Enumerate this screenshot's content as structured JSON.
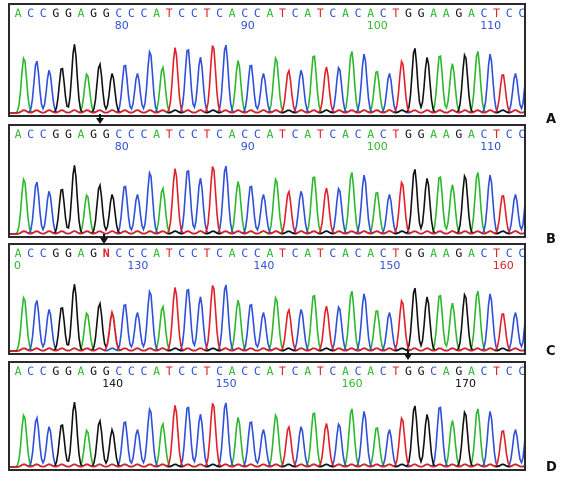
{
  "colors": {
    "A": "#2db82d",
    "C": "#2f50d8",
    "G": "#111111",
    "T": "#e0202a",
    "N": "#e0202a"
  },
  "panels": [
    {
      "label": "A",
      "sequence": "ACCGGAGGCCCATCCTCACCATCATCACACTGGAAGACTCCAG",
      "positions": [
        {
          "value": "80",
          "base_index": 8
        },
        {
          "value": "90",
          "base_index": 18
        },
        {
          "value": "100",
          "base_index": 28
        },
        {
          "value": "110",
          "base_index": 37
        }
      ]
    },
    {
      "label": "B",
      "sequence": "ACCGGAGGCCCATCCTCACCATCATCACACTGGAAGACTCCAG",
      "positions": [
        {
          "value": "80",
          "base_index": 8
        },
        {
          "value": "90",
          "base_index": 18
        },
        {
          "value": "100",
          "base_index": 28
        },
        {
          "value": "110",
          "base_index": 37
        }
      ]
    },
    {
      "label": "C",
      "sequence": "ACCGGAGNCCCATCCTCACCATCATCACACTGGAAGACTCCAG",
      "positions": [
        {
          "value": "0",
          "base_index": 0
        },
        {
          "value": "130",
          "base_index": 9
        },
        {
          "value": "140",
          "base_index": 19
        },
        {
          "value": "150",
          "base_index": 29
        },
        {
          "value": "160",
          "base_index": 38
        }
      ]
    },
    {
      "label": "D",
      "sequence": "ACCGGAGGCCCATCCTCACCATCATCACACTGGCAGACTCCAG",
      "positions": [
        {
          "value": "140",
          "base_index": 7
        },
        {
          "value": "150",
          "base_index": 16
        },
        {
          "value": "160",
          "base_index": 26
        },
        {
          "value": "170",
          "base_index": 35
        }
      ]
    }
  ]
}
